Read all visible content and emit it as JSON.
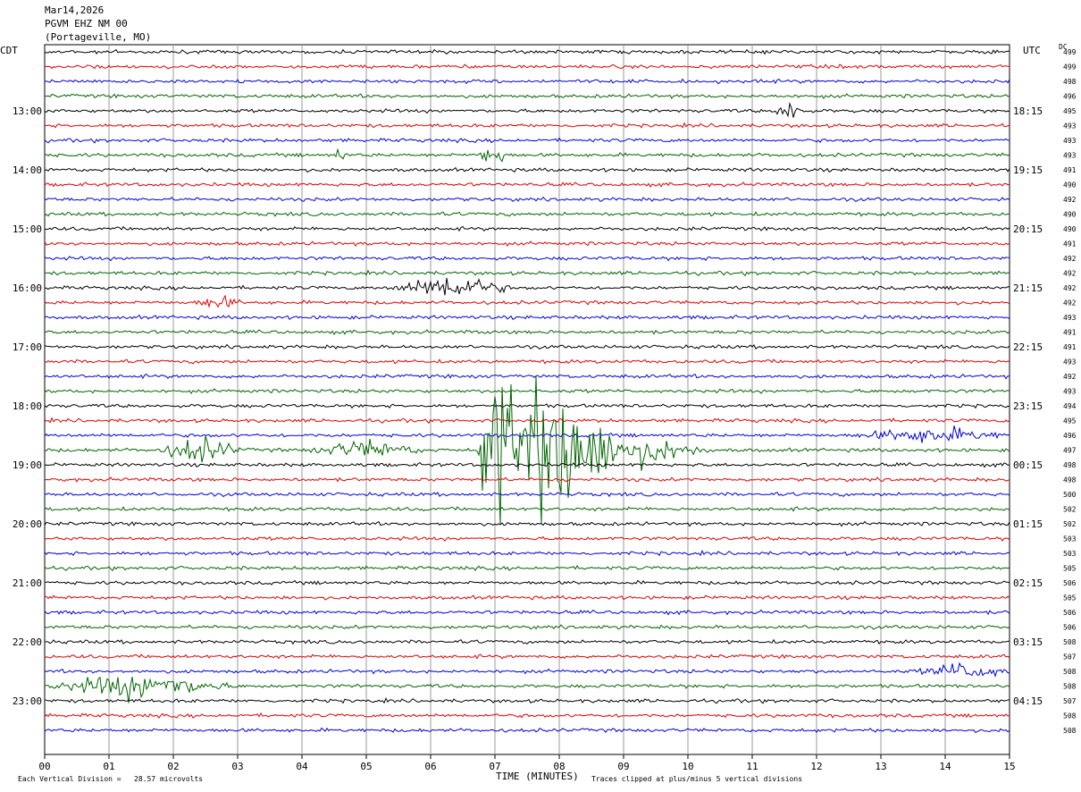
{
  "header": {
    "date": "Mar14,2026",
    "station": "PGVM EHZ NM 00",
    "location": "(Portageville, MO)"
  },
  "left_zone": "CDT",
  "right_zone": "UTC",
  "dc_label": "DC",
  "footer": {
    "scale_note": "Each Vertical Division =   28.57 microvolts",
    "xlabel": "TIME (MINUTES)",
    "clip_note": "Traces clipped at plus/minus 5 vertical divisions"
  },
  "colors": {
    "black": "#000000",
    "red": "#e00000",
    "blue": "#0000d8",
    "green": "#006400",
    "grid": "#9a9a9a"
  },
  "chart_data": {
    "type": "line",
    "title": "",
    "xlabel": "TIME (MINUTES)",
    "ylabel": "",
    "xlim": [
      0,
      15
    ],
    "x_ticks": [
      "00",
      "01",
      "02",
      "03",
      "04",
      "05",
      "06",
      "07",
      "08",
      "09",
      "10",
      "11",
      "12",
      "13",
      "14",
      "15"
    ],
    "trace_minutes": 15,
    "trace_color_cycle": [
      "black",
      "red",
      "blue",
      "green"
    ],
    "left_time_labels": [
      "13:00",
      "14:00",
      "15:00",
      "16:00",
      "17:00",
      "18:00",
      "19:00",
      "20:00",
      "21:00",
      "22:00",
      "23:00"
    ],
    "right_time_labels": [
      "18:15",
      "19:15",
      "20:15",
      "21:15",
      "22:15",
      "23:15",
      "00:15",
      "01:15",
      "02:15",
      "03:15",
      "04:15"
    ],
    "label_first_trace_index": 4,
    "label_every_n_traces": 4,
    "dc_offsets": [
      499,
      499,
      498,
      496,
      495,
      493,
      493,
      493,
      491,
      490,
      492,
      490,
      490,
      491,
      492,
      492,
      492,
      492,
      493,
      491,
      491,
      493,
      492,
      493,
      494,
      495,
      496,
      497,
      498,
      498,
      500,
      502,
      502,
      503,
      503,
      505,
      506,
      505,
      506,
      506,
      508,
      507,
      508,
      508,
      507,
      508,
      508
    ],
    "vertical_scale_microvolts_per_division": 28.57,
    "clip_divisions": 5,
    "events": [
      {
        "trace": 4,
        "minute": 11.6,
        "amp": 14,
        "dur": 0.25
      },
      {
        "trace": 7,
        "minute": 4.6,
        "amp": 9,
        "dur": 0.1
      },
      {
        "trace": 7,
        "minute": 6.85,
        "amp": 10,
        "dur": 0.1
      },
      {
        "trace": 7,
        "minute": 7.1,
        "amp": 10,
        "dur": 0.1
      },
      {
        "trace": 16,
        "minute": 6.3,
        "amp": 12,
        "dur": 1.0
      },
      {
        "trace": 17,
        "minute": 2.7,
        "amp": 6,
        "dur": 0.4
      },
      {
        "trace": 27,
        "minute": 2.4,
        "amp": 12,
        "dur": 0.7
      },
      {
        "trace": 27,
        "minute": 5.0,
        "amp": 8,
        "dur": 1.0
      },
      {
        "trace": 27,
        "minute": 7.0,
        "amp": 75,
        "dur": 0.3
      },
      {
        "trace": 27,
        "minute": 7.65,
        "amp": 80,
        "dur": 0.9
      },
      {
        "trace": 27,
        "minute": 8.4,
        "amp": 30,
        "dur": 0.6
      },
      {
        "trace": 27,
        "minute": 9.2,
        "amp": 14,
        "dur": 1.2
      },
      {
        "trace": 26,
        "minute": 13.8,
        "amp": 7,
        "dur": 1.3
      },
      {
        "trace": 42,
        "minute": 14.3,
        "amp": 8,
        "dur": 0.8
      },
      {
        "trace": 43,
        "minute": 1.5,
        "amp": 12,
        "dur": 1.5
      }
    ]
  }
}
